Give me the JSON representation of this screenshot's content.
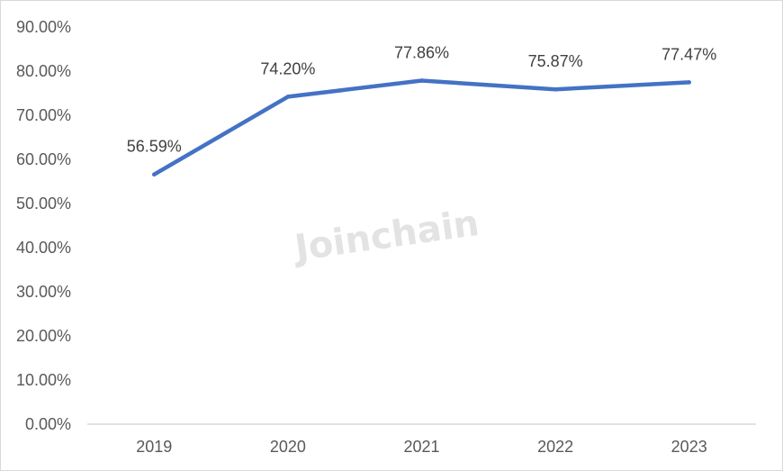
{
  "watermark": "Joinchain",
  "colors": {
    "line": "#4472c4",
    "axis": "#d9d9d9",
    "tick_text": "#595959",
    "label_text": "#404040"
  },
  "chart_data": {
    "type": "line",
    "title": "",
    "xlabel": "",
    "ylabel": "",
    "categories": [
      "2019",
      "2020",
      "2021",
      "2022",
      "2023"
    ],
    "series": [
      {
        "values": [
          56.59,
          74.2,
          77.86,
          75.87,
          77.47
        ],
        "labels": [
          "56.59%",
          "74.20%",
          "77.86%",
          "75.87%",
          "77.47%"
        ]
      }
    ],
    "ylim": [
      0,
      90
    ],
    "yticks": [
      0,
      10,
      20,
      30,
      40,
      50,
      60,
      70,
      80,
      90
    ],
    "ytick_labels": [
      "0.00%",
      "10.00%",
      "20.00%",
      "30.00%",
      "40.00%",
      "50.00%",
      "60.00%",
      "70.00%",
      "80.00%",
      "90.00%"
    ],
    "grid": false,
    "legend": "none"
  }
}
